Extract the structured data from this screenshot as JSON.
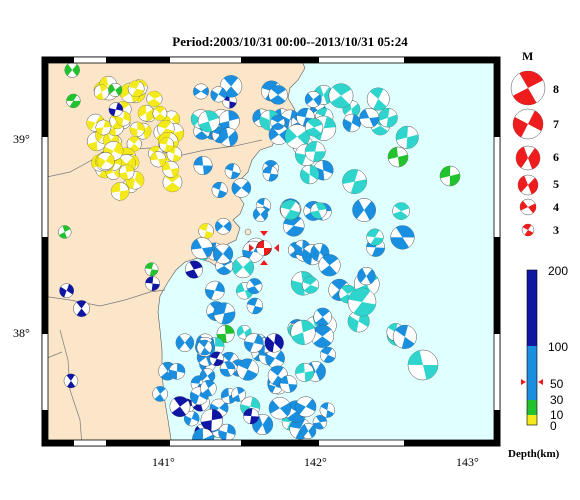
{
  "title": "Period:2003/10/31 00:00--2013/10/31 05:24",
  "axes": {
    "lat_ticks": [
      "39°",
      "38°"
    ],
    "lon_ticks": [
      "141°",
      "142°",
      "143°"
    ]
  },
  "magnitude_legend": {
    "header": "M",
    "entries": [
      "8",
      "7",
      "6",
      "5",
      "4",
      "3"
    ]
  },
  "depth_colorbar": {
    "tick_labels": [
      "200",
      "100",
      "50",
      "30",
      "10",
      "0"
    ],
    "label": "Depth(km)",
    "colors": {
      "deep": "#1016a4",
      "mid": "#1a8fe0",
      "shallow": "#22c22e",
      "surface": "#f4e91a",
      "cyan": "#2fd4cc",
      "red": "#ee1c1c"
    }
  },
  "colors": {
    "land": "#fbe6c9",
    "sea": "#e0ffff",
    "boundary": "#8a8a8a"
  },
  "icons": [
    "beachball-icon",
    "main-shock-icon"
  ]
}
